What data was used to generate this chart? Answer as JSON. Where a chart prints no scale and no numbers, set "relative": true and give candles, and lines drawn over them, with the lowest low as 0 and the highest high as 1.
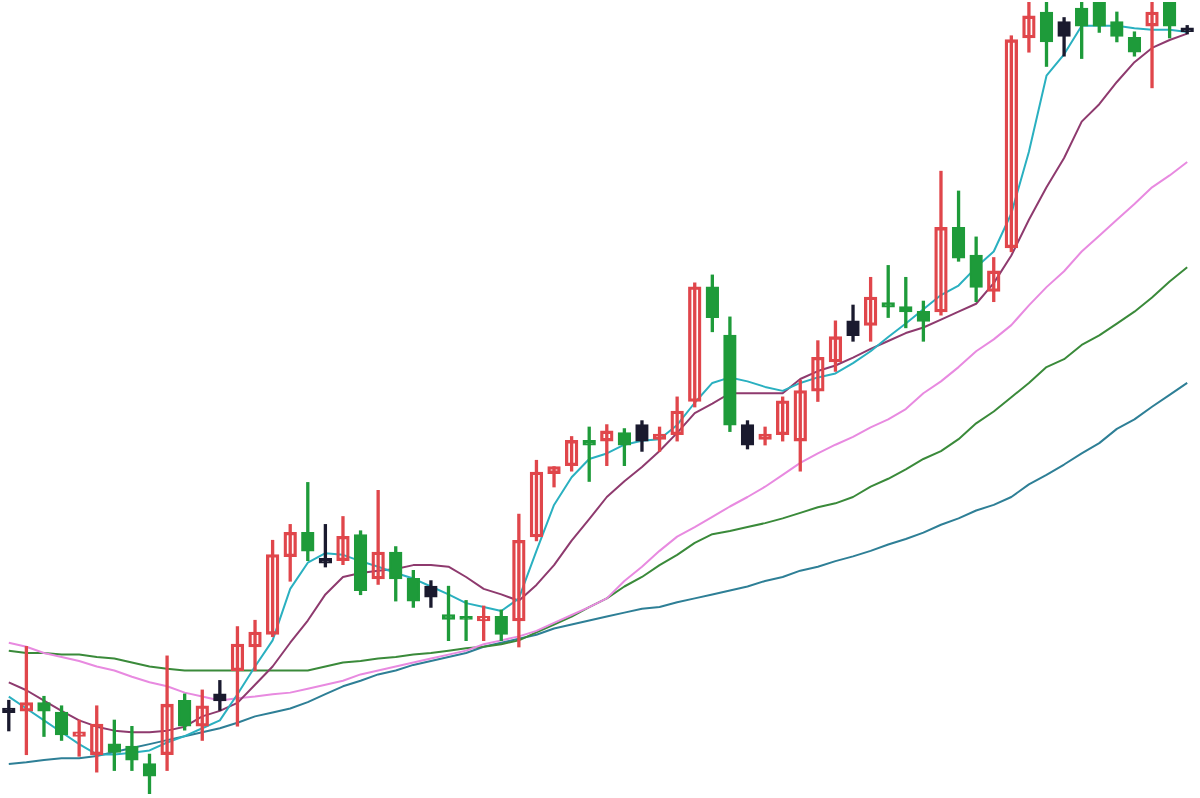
{
  "chart_data": {
    "type": "candlestick",
    "relative": true,
    "categories": [
      null,
      null,
      null,
      null,
      null,
      null,
      null,
      null,
      null,
      null,
      null,
      null,
      null,
      null,
      null,
      null,
      null,
      null,
      null,
      null,
      null,
      null,
      null,
      null,
      null,
      null,
      null,
      null,
      null,
      null,
      null,
      null,
      null,
      null,
      null,
      null,
      null,
      null,
      null,
      null,
      null,
      null,
      null,
      null,
      null,
      null,
      null,
      null,
      null,
      null,
      null,
      null,
      null,
      null,
      null,
      null,
      null,
      null,
      null,
      null,
      null,
      null,
      null,
      null,
      null,
      null,
      null,
      null
    ],
    "ohlc": [
      [
        0.108,
        0.118,
        0.08,
        0.103
      ],
      [
        0.105,
        0.186,
        0.05,
        0.115
      ],
      [
        0.115,
        0.123,
        0.073,
        0.105
      ],
      [
        0.103,
        0.111,
        0.068,
        0.075
      ],
      [
        0.073,
        0.093,
        0.048,
        0.078
      ],
      [
        0.05,
        0.111,
        0.028,
        0.088
      ],
      [
        0.063,
        0.093,
        0.03,
        0.053
      ],
      [
        0.06,
        0.085,
        0.03,
        0.043
      ],
      [
        0.038,
        0.05,
        0,
        0.023
      ],
      [
        0.05,
        0.174,
        0.03,
        0.113
      ],
      [
        0.118,
        0.126,
        0.081,
        0.086
      ],
      [
        0.086,
        0.131,
        0.068,
        0.111
      ],
      [
        0.126,
        0.143,
        0.106,
        0.118
      ],
      [
        0.156,
        0.211,
        0.086,
        0.189
      ],
      [
        0.186,
        0.219,
        0.156,
        0.204
      ],
      [
        0.202,
        0.32,
        0.199,
        0.302
      ],
      [
        0.3,
        0.34,
        0.269,
        0.33
      ],
      [
        0.33,
        0.393,
        0.295,
        0.307
      ],
      [
        0.297,
        0.34,
        0.287,
        0.292
      ],
      [
        0.295,
        0.35,
        0.29,
        0.325
      ],
      [
        0.327,
        0.332,
        0.252,
        0.257
      ],
      [
        0.272,
        0.383,
        0.265,
        0.305
      ],
      [
        0.305,
        0.312,
        0.244,
        0.272
      ],
      [
        0.272,
        0.282,
        0.236,
        0.244
      ],
      [
        0.262,
        0.269,
        0.236,
        0.249
      ],
      [
        0.226,
        0.262,
        0.194,
        0.221
      ],
      [
        0.224,
        0.244,
        0.194,
        0.221
      ],
      [
        0.219,
        0.237,
        0.194,
        0.224
      ],
      [
        0.224,
        0.232,
        0.194,
        0.202
      ],
      [
        0.219,
        0.353,
        0.186,
        0.32
      ],
      [
        0.325,
        0.421,
        0.32,
        0.406
      ],
      [
        0.405,
        0.413,
        0.388,
        0.413
      ],
      [
        0.415,
        0.451,
        0.408,
        0.446
      ],
      [
        0.446,
        0.463,
        0.395,
        0.441
      ],
      [
        0.446,
        0.466,
        0.415,
        0.458
      ],
      [
        0.456,
        0.461,
        0.415,
        0.441
      ],
      [
        0.466,
        0.471,
        0.433,
        0.446
      ],
      [
        0.448,
        0.463,
        0.433,
        0.454
      ],
      [
        0.454,
        0.501,
        0.446,
        0.483
      ],
      [
        0.496,
        0.645,
        0.489,
        0.64
      ],
      [
        0.64,
        0.655,
        0.584,
        0.602
      ],
      [
        0.579,
        0.602,
        0.458,
        0.466
      ],
      [
        0.466,
        0.471,
        0.436,
        0.441
      ],
      [
        0.448,
        0.463,
        0.441,
        0.454
      ],
      [
        0.454,
        0.501,
        0.446,
        0.496
      ],
      [
        0.446,
        0.522,
        0.408,
        0.509
      ],
      [
        0.509,
        0.572,
        0.496,
        0.551
      ],
      [
        0.546,
        0.597,
        0.534,
        0.577
      ],
      [
        0.597,
        0.617,
        0.572,
        0.579
      ],
      [
        0.592,
        0.652,
        0.572,
        0.627
      ],
      [
        0.62,
        0.667,
        0.602,
        0.615
      ],
      [
        0.615,
        0.652,
        0.589,
        0.609
      ],
      [
        0.609,
        0.622,
        0.572,
        0.597
      ],
      [
        0.609,
        0.786,
        0.605,
        0.715
      ],
      [
        0.715,
        0.761,
        0.673,
        0.677
      ],
      [
        0.68,
        0.703,
        0.622,
        0.64
      ],
      [
        0.635,
        0.677,
        0.622,
        0.66
      ],
      [
        0.69,
        0.957,
        0.685,
        0.952
      ],
      [
        0.955,
        1,
        0.937,
        0.982
      ],
      [
        0.987,
        1,
        0.919,
        0.95
      ],
      [
        0.975,
        0.98,
        0.932,
        0.957
      ],
      [
        0.992,
        1,
        0.929,
        0.97
      ],
      [
        1,
        1,
        0.962,
        0.97
      ],
      [
        0.975,
        0.987,
        0.95,
        0.957
      ],
      [
        0.955,
        0.962,
        0.932,
        0.937
      ],
      [
        0.97,
        1,
        0.892,
        0.987
      ],
      [
        1,
        1,
        0.955,
        0.97
      ],
      [
        0.967,
        0.97,
        0.96,
        0.963
      ]
    ],
    "colors": [
      "#1a1a2e",
      "#e0464b",
      "#1e9b3a",
      "#1e9b3a",
      "#e0464b",
      "#e0464b",
      "#1e9b3a",
      "#1e9b3a",
      "#1e9b3a",
      "#e0464b",
      "#1e9b3a",
      "#e0464b",
      "#1a1a2e",
      "#e0464b",
      "#e0464b",
      "#e0464b",
      "#e0464b",
      "#1e9b3a",
      "#1a1a2e",
      "#e0464b",
      "#1e9b3a",
      "#e0464b",
      "#1e9b3a",
      "#1e9b3a",
      "#1a1a2e",
      "#1e9b3a",
      "#1e9b3a",
      "#e0464b",
      "#1e9b3a",
      "#e0464b",
      "#e0464b",
      "#e0464b",
      "#e0464b",
      "#1e9b3a",
      "#e0464b",
      "#1e9b3a",
      "#1a1a2e",
      "#e0464b",
      "#e0464b",
      "#e0464b",
      "#1e9b3a",
      "#1e9b3a",
      "#1a1a2e",
      "#e0464b",
      "#e0464b",
      "#e0464b",
      "#e0464b",
      "#e0464b",
      "#1a1a2e",
      "#e0464b",
      "#1e9b3a",
      "#1e9b3a",
      "#1e9b3a",
      "#e0464b",
      "#1e9b3a",
      "#1e9b3a",
      "#e0464b",
      "#e0464b",
      "#e0464b",
      "#1e9b3a",
      "#1a1a2e",
      "#1e9b3a",
      "#1e9b3a",
      "#1e9b3a",
      "#1e9b3a",
      "#e0464b",
      "#1e9b3a",
      "#1a1a2e"
    ],
    "series": [
      {
        "type": "line",
        "color": "#2ab0c0",
        "values": [
          0.123,
          0.108,
          0.093,
          0.078,
          0.063,
          0.05,
          0.05,
          0.052,
          0.055,
          0.065,
          0.073,
          0.083,
          0.093,
          0.126,
          0.161,
          0.194,
          0.259,
          0.292,
          0.304,
          0.302,
          0.294,
          0.287,
          0.279,
          0.272,
          0.262,
          0.252,
          0.241,
          0.236,
          0.231,
          0.247,
          0.307,
          0.365,
          0.4,
          0.423,
          0.43,
          0.441,
          0.446,
          0.448,
          0.466,
          0.494,
          0.519,
          0.526,
          0.521,
          0.514,
          0.509,
          0.519,
          0.526,
          0.531,
          0.544,
          0.559,
          0.577,
          0.594,
          0.612,
          0.63,
          0.642,
          0.665,
          0.685,
          0.733,
          0.811,
          0.907,
          0.934,
          0.97,
          0.97,
          0.97,
          0.967,
          0.965,
          0.965,
          0.962
        ]
      },
      {
        "type": "line",
        "color": "#8e3a6e",
        "values": [
          0.141,
          0.131,
          0.118,
          0.105,
          0.093,
          0.085,
          0.08,
          0.078,
          0.078,
          0.08,
          0.085,
          0.098,
          0.105,
          0.115,
          0.138,
          0.161,
          0.191,
          0.219,
          0.252,
          0.274,
          0.279,
          0.282,
          0.284,
          0.289,
          0.289,
          0.287,
          0.274,
          0.259,
          0.252,
          0.244,
          0.264,
          0.289,
          0.32,
          0.347,
          0.375,
          0.395,
          0.413,
          0.433,
          0.456,
          0.481,
          0.493,
          0.506,
          0.506,
          0.506,
          0.506,
          0.524,
          0.534,
          0.541,
          0.551,
          0.562,
          0.572,
          0.582,
          0.589,
          0.599,
          0.609,
          0.619,
          0.645,
          0.68,
          0.725,
          0.766,
          0.803,
          0.849,
          0.871,
          0.899,
          0.924,
          0.942,
          0.952,
          0.96
        ]
      },
      {
        "type": "line",
        "color": "#e88ae0",
        "values": [
          0.191,
          0.186,
          0.178,
          0.173,
          0.168,
          0.161,
          0.156,
          0.148,
          0.141,
          0.136,
          0.128,
          0.123,
          0.118,
          0.121,
          0.123,
          0.126,
          0.128,
          0.133,
          0.138,
          0.143,
          0.151,
          0.156,
          0.161,
          0.166,
          0.171,
          0.176,
          0.181,
          0.189,
          0.194,
          0.199,
          0.206,
          0.216,
          0.226,
          0.236,
          0.247,
          0.269,
          0.287,
          0.307,
          0.325,
          0.337,
          0.35,
          0.363,
          0.375,
          0.388,
          0.403,
          0.418,
          0.43,
          0.441,
          0.451,
          0.463,
          0.473,
          0.486,
          0.506,
          0.521,
          0.539,
          0.559,
          0.574,
          0.592,
          0.617,
          0.64,
          0.66,
          0.685,
          0.705,
          0.725,
          0.745,
          0.766,
          0.781,
          0.798
        ]
      },
      {
        "type": "line",
        "color": "#3a8a3a",
        "values": [
          0.181,
          0.178,
          0.178,
          0.176,
          0.176,
          0.173,
          0.171,
          0.166,
          0.161,
          0.158,
          0.156,
          0.156,
          0.156,
          0.156,
          0.156,
          0.156,
          0.156,
          0.156,
          0.161,
          0.166,
          0.168,
          0.171,
          0.173,
          0.176,
          0.178,
          0.181,
          0.184,
          0.186,
          0.189,
          0.194,
          0.204,
          0.214,
          0.224,
          0.236,
          0.247,
          0.262,
          0.274,
          0.289,
          0.302,
          0.317,
          0.328,
          0.332,
          0.337,
          0.342,
          0.348,
          0.355,
          0.362,
          0.367,
          0.375,
          0.388,
          0.398,
          0.41,
          0.423,
          0.433,
          0.448,
          0.468,
          0.483,
          0.501,
          0.519,
          0.539,
          0.549,
          0.567,
          0.579,
          0.594,
          0.609,
          0.627,
          0.647,
          0.665
        ]
      },
      {
        "type": "line",
        "color": "#2e7f96",
        "values": [
          0.038,
          0.04,
          0.043,
          0.045,
          0.045,
          0.048,
          0.053,
          0.058,
          0.063,
          0.068,
          0.073,
          0.078,
          0.083,
          0.09,
          0.098,
          0.103,
          0.108,
          0.116,
          0.126,
          0.136,
          0.143,
          0.151,
          0.156,
          0.163,
          0.168,
          0.173,
          0.178,
          0.186,
          0.191,
          0.196,
          0.201,
          0.209,
          0.214,
          0.219,
          0.224,
          0.229,
          0.234,
          0.236,
          0.242,
          0.247,
          0.252,
          0.257,
          0.262,
          0.269,
          0.274,
          0.282,
          0.287,
          0.294,
          0.3,
          0.307,
          0.315,
          0.322,
          0.33,
          0.34,
          0.348,
          0.358,
          0.365,
          0.375,
          0.391,
          0.403,
          0.416,
          0.43,
          0.443,
          0.461,
          0.473,
          0.489,
          0.504,
          0.519
        ]
      }
    ]
  }
}
